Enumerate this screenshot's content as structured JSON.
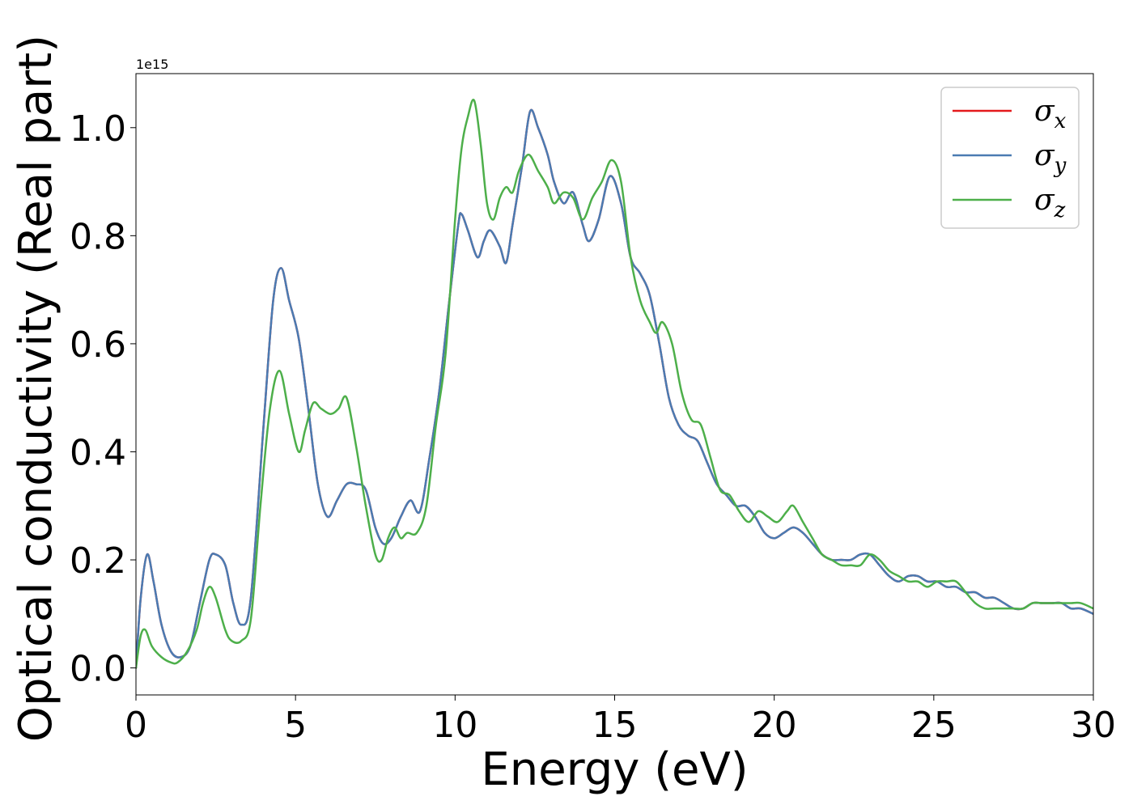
{
  "chart_data": {
    "type": "line",
    "title": "",
    "xlabel": "Energy (eV)",
    "ylabel": "Optical conductivity (Real part)",
    "y_offset_text": "1e15",
    "xlim": [
      0,
      30
    ],
    "ylim": [
      -0.05,
      1.1
    ],
    "xticks": [
      0,
      5,
      10,
      15,
      20,
      25,
      30
    ],
    "xtick_labels": [
      "0",
      "5",
      "10",
      "15",
      "20",
      "25",
      "30"
    ],
    "yticks": [
      0.0,
      0.2,
      0.4,
      0.6,
      0.8,
      1.0
    ],
    "ytick_labels": [
      "0.0",
      "0.2",
      "0.4",
      "0.6",
      "0.8",
      "1.0"
    ],
    "grid": false,
    "legend_position": "top-right",
    "series": [
      {
        "name": "σx",
        "legend_base": "σ",
        "legend_sub": "x",
        "color": "#e41a1c",
        "x": [
          0,
          0.15,
          0.35,
          0.55,
          0.8,
          1.1,
          1.4,
          1.7,
          2.0,
          2.3,
          2.5,
          2.8,
          3.05,
          3.3,
          3.6,
          4.0,
          4.3,
          4.55,
          4.8,
          5.1,
          5.4,
          5.7,
          6.0,
          6.3,
          6.6,
          6.9,
          7.2,
          7.5,
          7.75,
          8.0,
          8.3,
          8.6,
          8.9,
          9.2,
          9.5,
          9.8,
          10.1,
          10.2,
          10.4,
          10.7,
          10.9,
          11.1,
          11.4,
          11.6,
          11.8,
          12.1,
          12.35,
          12.6,
          12.9,
          13.1,
          13.4,
          13.7,
          14.0,
          14.2,
          14.5,
          14.85,
          15.2,
          15.5,
          15.8,
          16.1,
          16.4,
          16.7,
          17.0,
          17.3,
          17.6,
          17.9,
          18.2,
          18.5,
          18.8,
          19.1,
          19.4,
          19.7,
          20.0,
          20.3,
          20.6,
          20.9,
          21.2,
          21.5,
          21.8,
          22.1,
          22.4,
          22.7,
          23.0,
          23.3,
          23.6,
          23.9,
          24.2,
          24.5,
          24.8,
          25.1,
          25.4,
          25.7,
          26.0,
          26.3,
          26.6,
          26.9,
          27.2,
          27.5,
          27.8,
          28.1,
          28.4,
          28.7,
          29.0,
          29.3,
          29.6,
          30
        ],
        "values": [
          0.0,
          0.13,
          0.21,
          0.16,
          0.08,
          0.03,
          0.02,
          0.04,
          0.12,
          0.2,
          0.21,
          0.19,
          0.12,
          0.08,
          0.13,
          0.45,
          0.68,
          0.74,
          0.68,
          0.61,
          0.48,
          0.34,
          0.28,
          0.31,
          0.34,
          0.34,
          0.33,
          0.26,
          0.23,
          0.24,
          0.28,
          0.31,
          0.29,
          0.39,
          0.51,
          0.67,
          0.82,
          0.84,
          0.81,
          0.76,
          0.79,
          0.81,
          0.78,
          0.75,
          0.82,
          0.93,
          1.03,
          1.0,
          0.95,
          0.9,
          0.86,
          0.88,
          0.82,
          0.79,
          0.83,
          0.91,
          0.86,
          0.76,
          0.73,
          0.69,
          0.6,
          0.5,
          0.45,
          0.43,
          0.42,
          0.38,
          0.34,
          0.32,
          0.3,
          0.3,
          0.28,
          0.25,
          0.24,
          0.25,
          0.26,
          0.25,
          0.23,
          0.21,
          0.2,
          0.2,
          0.2,
          0.21,
          0.21,
          0.19,
          0.17,
          0.16,
          0.17,
          0.17,
          0.16,
          0.16,
          0.15,
          0.15,
          0.14,
          0.14,
          0.13,
          0.13,
          0.12,
          0.11,
          0.11,
          0.12,
          0.12,
          0.12,
          0.12,
          0.11,
          0.11,
          0.1
        ]
      },
      {
        "name": "σy",
        "legend_base": "σ",
        "legend_sub": "y",
        "color": "#4a7bb2",
        "x": [
          0,
          0.15,
          0.35,
          0.55,
          0.8,
          1.1,
          1.4,
          1.7,
          2.0,
          2.3,
          2.5,
          2.8,
          3.05,
          3.3,
          3.6,
          4.0,
          4.3,
          4.55,
          4.8,
          5.1,
          5.4,
          5.7,
          6.0,
          6.3,
          6.6,
          6.9,
          7.2,
          7.5,
          7.75,
          8.0,
          8.3,
          8.6,
          8.9,
          9.2,
          9.5,
          9.8,
          10.1,
          10.2,
          10.4,
          10.7,
          10.9,
          11.1,
          11.4,
          11.6,
          11.8,
          12.1,
          12.35,
          12.6,
          12.9,
          13.1,
          13.4,
          13.7,
          14.0,
          14.2,
          14.5,
          14.85,
          15.2,
          15.5,
          15.8,
          16.1,
          16.4,
          16.7,
          17.0,
          17.3,
          17.6,
          17.9,
          18.2,
          18.5,
          18.8,
          19.1,
          19.4,
          19.7,
          20.0,
          20.3,
          20.6,
          20.9,
          21.2,
          21.5,
          21.8,
          22.1,
          22.4,
          22.7,
          23.0,
          23.3,
          23.6,
          23.9,
          24.2,
          24.5,
          24.8,
          25.1,
          25.4,
          25.7,
          26.0,
          26.3,
          26.6,
          26.9,
          27.2,
          27.5,
          27.8,
          28.1,
          28.4,
          28.7,
          29.0,
          29.3,
          29.6,
          30
        ],
        "values": [
          0.0,
          0.13,
          0.21,
          0.16,
          0.08,
          0.03,
          0.02,
          0.04,
          0.12,
          0.2,
          0.21,
          0.19,
          0.12,
          0.08,
          0.13,
          0.45,
          0.68,
          0.74,
          0.68,
          0.61,
          0.48,
          0.34,
          0.28,
          0.31,
          0.34,
          0.34,
          0.33,
          0.26,
          0.23,
          0.24,
          0.28,
          0.31,
          0.29,
          0.39,
          0.51,
          0.67,
          0.82,
          0.84,
          0.81,
          0.76,
          0.79,
          0.81,
          0.78,
          0.75,
          0.82,
          0.93,
          1.03,
          1.0,
          0.95,
          0.9,
          0.86,
          0.88,
          0.82,
          0.79,
          0.83,
          0.91,
          0.86,
          0.76,
          0.73,
          0.69,
          0.6,
          0.5,
          0.45,
          0.43,
          0.42,
          0.38,
          0.34,
          0.32,
          0.3,
          0.3,
          0.28,
          0.25,
          0.24,
          0.25,
          0.26,
          0.25,
          0.23,
          0.21,
          0.2,
          0.2,
          0.2,
          0.21,
          0.21,
          0.19,
          0.17,
          0.16,
          0.17,
          0.17,
          0.16,
          0.16,
          0.15,
          0.15,
          0.14,
          0.14,
          0.13,
          0.13,
          0.12,
          0.11,
          0.11,
          0.12,
          0.12,
          0.12,
          0.12,
          0.11,
          0.11,
          0.1
        ]
      },
      {
        "name": "σz",
        "legend_base": "σ",
        "legend_sub": "z",
        "color": "#4daf4a",
        "x": [
          0,
          0.15,
          0.3,
          0.5,
          0.8,
          1.1,
          1.3,
          1.6,
          1.9,
          2.1,
          2.3,
          2.5,
          2.8,
          3.0,
          3.3,
          3.6,
          3.9,
          4.2,
          4.5,
          4.8,
          5.1,
          5.3,
          5.55,
          5.8,
          6.1,
          6.35,
          6.6,
          6.9,
          7.2,
          7.5,
          7.7,
          7.9,
          8.1,
          8.3,
          8.5,
          8.8,
          9.1,
          9.4,
          9.7,
          10.0,
          10.2,
          10.4,
          10.6,
          10.8,
          11.0,
          11.2,
          11.4,
          11.6,
          11.8,
          12.0,
          12.3,
          12.6,
          12.9,
          13.1,
          13.4,
          13.7,
          14.0,
          14.3,
          14.6,
          14.9,
          15.2,
          15.5,
          15.8,
          16.1,
          16.3,
          16.5,
          16.8,
          17.1,
          17.4,
          17.7,
          18.0,
          18.3,
          18.6,
          18.9,
          19.2,
          19.5,
          19.8,
          20.1,
          20.4,
          20.6,
          20.9,
          21.2,
          21.5,
          21.8,
          22.1,
          22.4,
          22.7,
          23.0,
          23.3,
          23.6,
          23.9,
          24.2,
          24.5,
          24.8,
          25.1,
          25.4,
          25.7,
          26.0,
          26.3,
          26.6,
          26.9,
          27.2,
          27.5,
          27.8,
          28.1,
          28.4,
          28.7,
          29.0,
          29.3,
          29.6,
          30
        ],
        "values": [
          0.0,
          0.06,
          0.07,
          0.04,
          0.02,
          0.01,
          0.01,
          0.03,
          0.07,
          0.12,
          0.15,
          0.13,
          0.07,
          0.05,
          0.05,
          0.09,
          0.3,
          0.48,
          0.55,
          0.47,
          0.4,
          0.44,
          0.49,
          0.48,
          0.47,
          0.48,
          0.5,
          0.41,
          0.3,
          0.21,
          0.2,
          0.24,
          0.26,
          0.24,
          0.25,
          0.25,
          0.3,
          0.45,
          0.58,
          0.83,
          0.96,
          1.02,
          1.05,
          0.97,
          0.86,
          0.83,
          0.87,
          0.89,
          0.88,
          0.92,
          0.95,
          0.92,
          0.89,
          0.86,
          0.88,
          0.87,
          0.83,
          0.87,
          0.9,
          0.94,
          0.9,
          0.76,
          0.68,
          0.64,
          0.62,
          0.64,
          0.6,
          0.51,
          0.46,
          0.45,
          0.39,
          0.33,
          0.32,
          0.29,
          0.27,
          0.29,
          0.28,
          0.27,
          0.29,
          0.3,
          0.27,
          0.24,
          0.21,
          0.2,
          0.19,
          0.19,
          0.19,
          0.21,
          0.2,
          0.18,
          0.17,
          0.16,
          0.16,
          0.15,
          0.16,
          0.16,
          0.16,
          0.14,
          0.12,
          0.11,
          0.11,
          0.11,
          0.11,
          0.11,
          0.12,
          0.12,
          0.12,
          0.12,
          0.12,
          0.12,
          0.11
        ]
      }
    ]
  }
}
